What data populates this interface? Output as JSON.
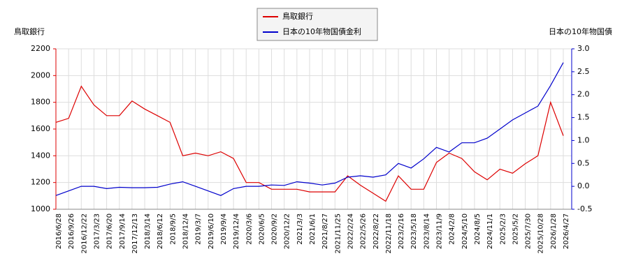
{
  "chart_data": {
    "type": "line",
    "y_label": "鳥取銀行",
    "y2_label": "日本の10年物国債",
    "x": [
      "2016/6/28",
      "2016/9/26",
      "2016/12/22",
      "2017/3/23",
      "2017/6/20",
      "2017/9/14",
      "2017/12/13",
      "2018/3/14",
      "2018/6/12",
      "2018/9/5",
      "2018/12/4",
      "2019/3/7",
      "2019/6/10",
      "2019/9/4",
      "2019/12/4",
      "2020/3/6",
      "2020/6/5",
      "2020/9/2",
      "2020/12/2",
      "2021/3/3",
      "2021/6/1",
      "2021/8/27",
      "2021/11/25",
      "2022/2/24",
      "2022/5/26",
      "2022/8/22",
      "2022/11/18",
      "2023/2/16",
      "2023/5/18",
      "2023/8/14",
      "2023/11/9",
      "2024/2/8",
      "2024/5/10",
      "2024/8/5",
      "2024/11/1",
      "2025/2/3",
      "2025/5/2",
      "2025/7/30",
      "2025/10/28",
      "2026/1/28",
      "2026/4/27"
    ],
    "series": [
      {
        "name": "鳥取銀行",
        "color": "#dd0000",
        "values": [
          1650,
          1680,
          1920,
          1780,
          1700,
          1700,
          1810,
          1750,
          1700,
          1650,
          1400,
          1420,
          1400,
          1430,
          1380,
          1200,
          1200,
          1150,
          1150,
          1150,
          1130,
          1130,
          1130,
          1250,
          1180,
          1120,
          1060,
          1250,
          1150,
          1150,
          1350,
          1420,
          1380,
          1280,
          1220,
          1300,
          1270,
          1340,
          1400,
          1800,
          1550
        ]
      },
      {
        "name": "日本の10年物国債金利",
        "color": "#0000cc",
        "axis": "y2",
        "values": [
          -0.2,
          -0.1,
          0.0,
          0.0,
          -0.05,
          -0.02,
          -0.03,
          -0.03,
          -0.02,
          0.05,
          0.1,
          0.0,
          -0.1,
          -0.2,
          -0.05,
          0.0,
          0.0,
          0.03,
          0.02,
          0.1,
          0.07,
          0.03,
          0.07,
          0.2,
          0.23,
          0.2,
          0.25,
          0.5,
          0.4,
          0.6,
          0.85,
          0.75,
          0.95,
          0.95,
          1.05,
          1.25,
          1.45,
          1.6,
          1.75,
          2.2,
          2.7
        ]
      }
    ],
    "ylim": [
      1000,
      2200
    ],
    "yticks": [
      1000,
      1200,
      1400,
      1600,
      1800,
      2000,
      2200
    ],
    "y2lim": [
      -0.5,
      3.0
    ],
    "y2ticks": [
      {
        "value": -0.5,
        "label": "-0.5"
      },
      {
        "value": 0,
        "label": "0.0"
      },
      {
        "value": 0.5,
        "label": "0.5"
      },
      {
        "value": 1,
        "label": "1.0"
      },
      {
        "value": 1.5,
        "label": "1.5"
      },
      {
        "value": 2,
        "label": "2.0"
      },
      {
        "value": 2.5,
        "label": "2.5"
      },
      {
        "value": 3,
        "label": "3.0"
      }
    ],
    "grid": true
  }
}
